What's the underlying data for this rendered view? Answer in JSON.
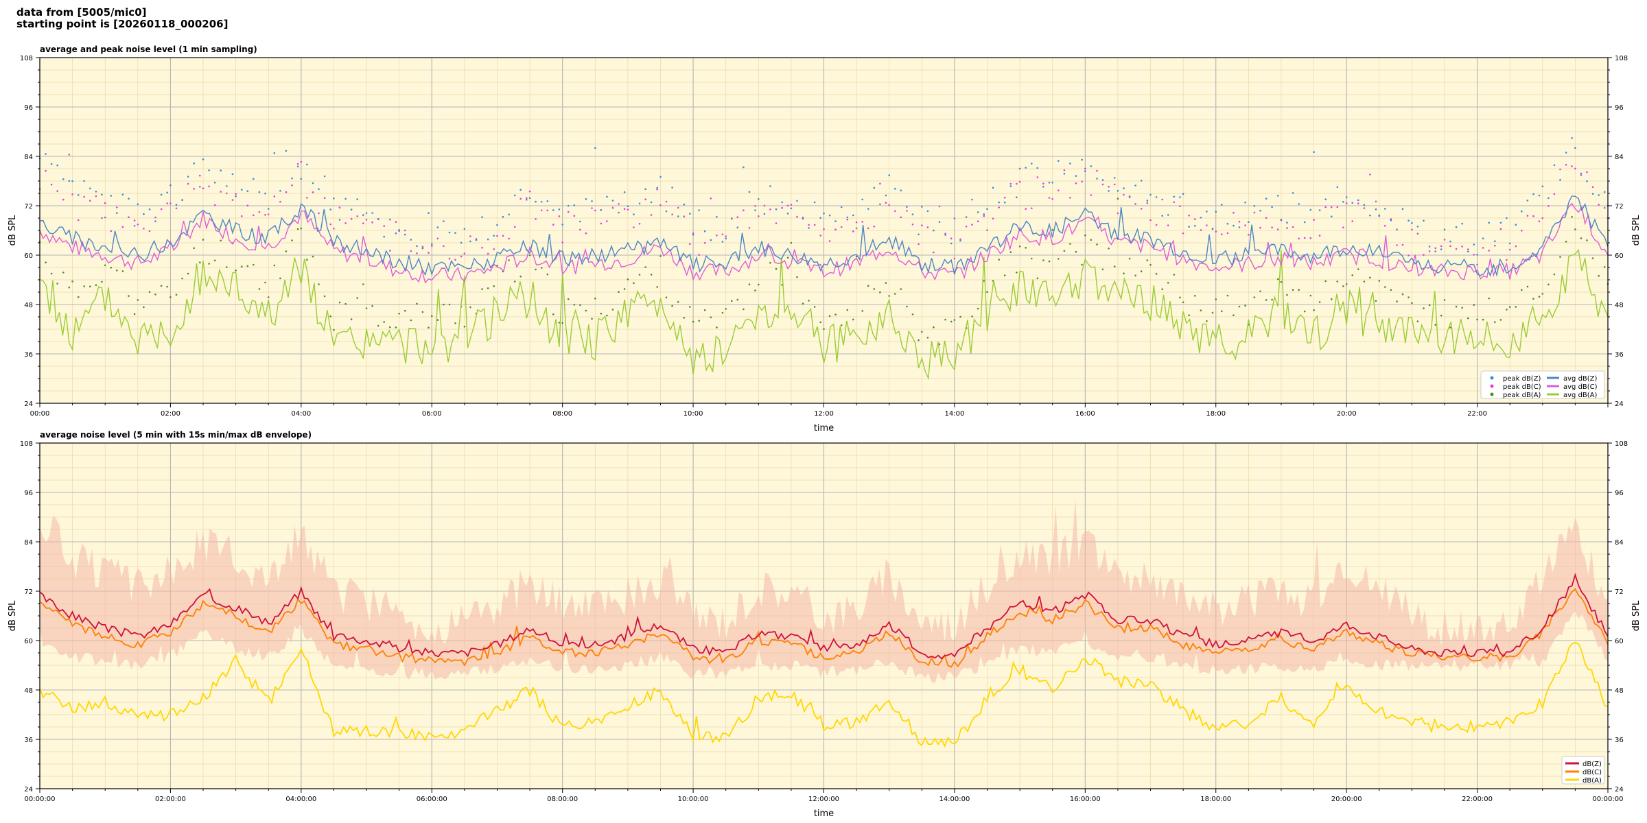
{
  "header": {
    "line1": "data from [5005/mic0]",
    "line2": "starting point is [20260118_000206]"
  },
  "colors": {
    "plot_bg": "#fff7d9",
    "avg_Z": "#4a86c5",
    "avg_C": "#e05bd8",
    "avg_A": "#9acd32",
    "peak_Z": "#2f8fe0",
    "peak_C": "#e83adf",
    "peak_A": "#4d8a2a",
    "Z5": "#d0103a",
    "C5": "#ff8000",
    "A5": "#ffd700",
    "envelope": "#f4b8a8"
  },
  "chart_data": [
    {
      "type": "line",
      "title": "average and peak noise level (1 min sampling)",
      "xlabel": "time",
      "ylabel": "dB SPL",
      "ylim": [
        24,
        108
      ],
      "xlim_hours": [
        0,
        24
      ],
      "y_ticks": [
        24,
        36,
        48,
        60,
        72,
        84,
        96,
        108
      ],
      "x_tick_labels": [
        "00:00",
        "02:00",
        "04:00",
        "06:00",
        "08:00",
        "10:00",
        "12:00",
        "14:00",
        "16:00",
        "18:00",
        "20:00",
        "22:00"
      ],
      "grid": true,
      "legend_position": "bottom-right",
      "legend": [
        "peak dB(Z)",
        "peak dB(C)",
        "peak dB(A)",
        "avg dB(Z)",
        "avg dB(C)",
        "avg dB(A)"
      ],
      "x_hours": [
        0.0,
        0.5,
        1.0,
        1.5,
        2.0,
        2.5,
        3.0,
        3.5,
        4.0,
        4.5,
        5.0,
        5.5,
        6.0,
        6.5,
        7.0,
        7.5,
        8.0,
        8.5,
        9.0,
        9.5,
        10.0,
        10.5,
        11.0,
        11.5,
        12.0,
        12.5,
        13.0,
        13.5,
        14.0,
        14.5,
        15.0,
        15.5,
        16.0,
        16.5,
        17.0,
        17.5,
        18.0,
        18.5,
        19.0,
        19.5,
        20.0,
        20.5,
        21.0,
        21.5,
        22.0,
        22.5,
        23.0,
        23.5,
        24.0
      ],
      "series": [
        {
          "name": "avg dB(Z)",
          "values": [
            68,
            64,
            62,
            60,
            63,
            70,
            66,
            64,
            72,
            63,
            61,
            58,
            57,
            57,
            59,
            62,
            59,
            60,
            61,
            63,
            58,
            58,
            62,
            60,
            58,
            60,
            64,
            58,
            57,
            62,
            67,
            66,
            70,
            65,
            64,
            61,
            59,
            60,
            61,
            60,
            62,
            61,
            58,
            57,
            57,
            57,
            62,
            75,
            62
          ]
        },
        {
          "name": "avg dB(C)",
          "values": [
            66,
            62,
            60,
            58,
            61,
            69,
            64,
            62,
            70,
            61,
            59,
            56,
            55,
            55,
            57,
            60,
            57,
            58,
            59,
            62,
            56,
            56,
            60,
            58,
            56,
            58,
            62,
            56,
            55,
            60,
            65,
            64,
            68,
            63,
            62,
            59,
            57,
            58,
            59,
            58,
            60,
            59,
            56,
            56,
            56,
            56,
            60,
            73,
            60
          ]
        },
        {
          "name": "avg dB(A)",
          "values": [
            55,
            40,
            50,
            40,
            42,
            55,
            52,
            45,
            58,
            38,
            39,
            38,
            38,
            39,
            46,
            50,
            39,
            39,
            46,
            48,
            36,
            36,
            47,
            48,
            38,
            40,
            46,
            35,
            35,
            46,
            52,
            48,
            55,
            50,
            49,
            42,
            39,
            40,
            47,
            40,
            48,
            42,
            40,
            40,
            39,
            40,
            44,
            60,
            45
          ]
        },
        {
          "name": "peak dB(Z)",
          "values": [
            82,
            75,
            73,
            70,
            74,
            80,
            76,
            74,
            82,
            72,
            70,
            66,
            64,
            65,
            68,
            76,
            70,
            72,
            73,
            76,
            67,
            67,
            74,
            73,
            68,
            70,
            76,
            68,
            66,
            73,
            78,
            79,
            82,
            76,
            75,
            71,
            69,
            70,
            72,
            70,
            74,
            72,
            66,
            64,
            64,
            66,
            75,
            86,
            72
          ]
        },
        {
          "name": "peak dB(C)",
          "values": [
            79,
            72,
            70,
            67,
            71,
            77,
            73,
            71,
            79,
            69,
            67,
            63,
            61,
            62,
            65,
            73,
            67,
            69,
            70,
            73,
            64,
            64,
            71,
            70,
            65,
            67,
            73,
            65,
            63,
            70,
            75,
            76,
            79,
            73,
            72,
            68,
            66,
            67,
            69,
            67,
            71,
            69,
            63,
            61,
            61,
            63,
            72,
            83,
            69
          ]
        },
        {
          "name": "peak dB(A)",
          "values": [
            62,
            50,
            58,
            48,
            50,
            62,
            60,
            53,
            66,
            45,
            46,
            45,
            45,
            46,
            54,
            58,
            46,
            46,
            53,
            56,
            43,
            43,
            55,
            56,
            45,
            47,
            54,
            42,
            41,
            54,
            60,
            56,
            62,
            58,
            57,
            50,
            46,
            47,
            55,
            47,
            56,
            50,
            47,
            46,
            46,
            47,
            52,
            68,
            53
          ]
        }
      ]
    },
    {
      "type": "line",
      "title": "average noise level (5 min with 15s min/max dB envelope)",
      "xlabel": "time",
      "ylabel": "dB SPL",
      "ylim": [
        24,
        108
      ],
      "xlim_hours": [
        0,
        24
      ],
      "y_ticks": [
        24,
        36,
        48,
        60,
        72,
        84,
        96,
        108
      ],
      "x_tick_labels": [
        "00:00:00",
        "02:00:00",
        "04:00:00",
        "06:00:00",
        "08:00:00",
        "10:00:00",
        "12:00:00",
        "14:00:00",
        "16:00:00",
        "18:00:00",
        "20:00:00",
        "22:00:00",
        "00:00:00"
      ],
      "grid": true,
      "legend_position": "bottom-right",
      "legend": [
        "dB(Z)",
        "dB(C)",
        "dB(A)"
      ],
      "x_hours": [
        0.0,
        0.5,
        1.0,
        1.5,
        2.0,
        2.5,
        3.0,
        3.5,
        4.0,
        4.5,
        5.0,
        5.5,
        6.0,
        6.5,
        7.0,
        7.5,
        8.0,
        8.5,
        9.0,
        9.5,
        10.0,
        10.5,
        11.0,
        11.5,
        12.0,
        12.5,
        13.0,
        13.5,
        14.0,
        14.5,
        15.0,
        15.5,
        16.0,
        16.5,
        17.0,
        17.5,
        18.0,
        18.5,
        19.0,
        19.5,
        20.0,
        20.5,
        21.0,
        21.5,
        22.0,
        22.5,
        23.0,
        23.5,
        24.0
      ],
      "series": [
        {
          "name": "dB(Z)",
          "values": [
            71,
            66,
            63,
            61,
            64,
            71,
            68,
            64,
            72,
            61,
            60,
            58,
            57,
            57,
            59,
            63,
            59,
            59,
            61,
            64,
            58,
            57,
            62,
            61,
            58,
            59,
            64,
            57,
            56,
            63,
            69,
            67,
            71,
            65,
            65,
            61,
            59,
            60,
            62,
            60,
            64,
            61,
            58,
            57,
            57,
            57,
            63,
            75,
            61
          ]
        },
        {
          "name": "dB(C)",
          "values": [
            69,
            64,
            61,
            59,
            62,
            69,
            66,
            62,
            70,
            59,
            58,
            56,
            55,
            55,
            57,
            61,
            57,
            57,
            59,
            62,
            56,
            55,
            60,
            59,
            56,
            57,
            62,
            55,
            54,
            61,
            67,
            65,
            69,
            63,
            63,
            59,
            57,
            58,
            60,
            58,
            62,
            59,
            57,
            56,
            56,
            56,
            62,
            73,
            59
          ]
        },
        {
          "name": "dB(A)",
          "values": [
            48,
            43,
            45,
            42,
            42,
            46,
            55,
            45,
            58,
            38,
            38,
            37,
            37,
            38,
            43,
            48,
            39,
            40,
            44,
            48,
            37,
            36,
            46,
            47,
            39,
            40,
            46,
            35,
            35,
            46,
            53,
            48,
            56,
            50,
            49,
            43,
            39,
            40,
            46,
            40,
            49,
            43,
            40,
            39,
            39,
            40,
            45,
            60,
            44
          ]
        },
        {
          "name": "max",
          "values": [
            90,
            80,
            76,
            73,
            76,
            84,
            80,
            75,
            86,
            72,
            70,
            66,
            64,
            64,
            68,
            75,
            68,
            69,
            71,
            75,
            66,
            65,
            73,
            72,
            66,
            68,
            76,
            65,
            64,
            73,
            80,
            79,
            84,
            76,
            76,
            71,
            68,
            69,
            72,
            69,
            76,
            72,
            66,
            63,
            62,
            63,
            74,
            88,
            70
          ]
        },
        {
          "name": "min",
          "values": [
            60,
            56,
            55,
            54,
            56,
            62,
            58,
            56,
            62,
            54,
            53,
            52,
            52,
            52,
            53,
            55,
            53,
            53,
            54,
            56,
            52,
            52,
            54,
            54,
            52,
            53,
            55,
            51,
            51,
            54,
            58,
            57,
            60,
            56,
            56,
            54,
            53,
            53,
            54,
            53,
            55,
            54,
            54,
            54,
            54,
            54,
            55,
            68,
            55
          ]
        }
      ]
    }
  ]
}
